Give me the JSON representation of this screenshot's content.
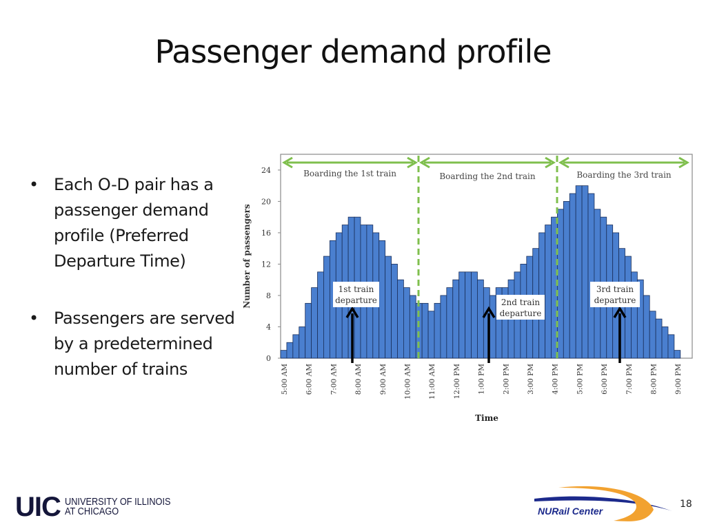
{
  "slide": {
    "title": "Passenger demand profile",
    "bullets": [
      "Each O-D pair has a passenger demand profile (Preferred Departure Time)",
      "Passengers are served by a predetermined number of trains"
    ],
    "page_number": "18"
  },
  "footer": {
    "uic_mark": "UIC",
    "uic_line1": "UNIVERSITY OF ILLINOIS",
    "uic_line2": "AT CHICAGO",
    "nurail_label": "NURail Center",
    "colors": {
      "uic_navy": "#14163a",
      "nurail_blue": "#1c2a8c",
      "nurail_orange": "#f2a230"
    }
  },
  "chart_data": {
    "type": "bar",
    "title": "",
    "xlabel": "Time",
    "ylabel": "Number of passengers",
    "ylim": [
      0,
      24
    ],
    "yticks": [
      0,
      4,
      8,
      12,
      16,
      20,
      24
    ],
    "xtick_labels": [
      "5:00 AM",
      "6:00 AM",
      "7:00 AM",
      "8:00 AM",
      "9:00 AM",
      "10:00 AM",
      "11:00 AM",
      "12:00 PM",
      "1:00 PM",
      "2:00 PM",
      "3:00 PM",
      "4:00 PM",
      "5:00 PM",
      "6:00 PM",
      "7:00 PM",
      "8:00 PM",
      "9:00 PM"
    ],
    "bar_interval_minutes": 15,
    "values": [
      1,
      2,
      3,
      4,
      7,
      9,
      11,
      13,
      15,
      16,
      17,
      18,
      18,
      17,
      17,
      16,
      15,
      13,
      12,
      10,
      9,
      8,
      7,
      7,
      6,
      7,
      8,
      9,
      10,
      11,
      11,
      11,
      10,
      9,
      8,
      9,
      9,
      10,
      11,
      12,
      13,
      14,
      16,
      17,
      18,
      19,
      20,
      21,
      22,
      22,
      21,
      19,
      18,
      17,
      16,
      14,
      13,
      11,
      10,
      8,
      6,
      5,
      4,
      3,
      1
    ],
    "bar_color": "#4a7fcf",
    "grid": false,
    "boarding_windows": [
      {
        "label": "Boarding the 1st train",
        "start_bar": 0,
        "end_bar": 22
      },
      {
        "label": "Boarding the 2nd train",
        "start_bar": 22,
        "end_bar": 45
      },
      {
        "label": "Boarding the 3rd train",
        "start_bar": 45,
        "end_bar": 65
      }
    ],
    "departures": [
      {
        "label_line1": "1st train",
        "label_line2": "departure",
        "time": "8:00 AM"
      },
      {
        "label_line1": "2nd train",
        "label_line2": "departure",
        "time": "1:30 PM"
      },
      {
        "label_line1": "3rd train",
        "label_line2": "departure",
        "time": "7:00 PM"
      }
    ],
    "annotation_color": "#7fbf4d"
  }
}
